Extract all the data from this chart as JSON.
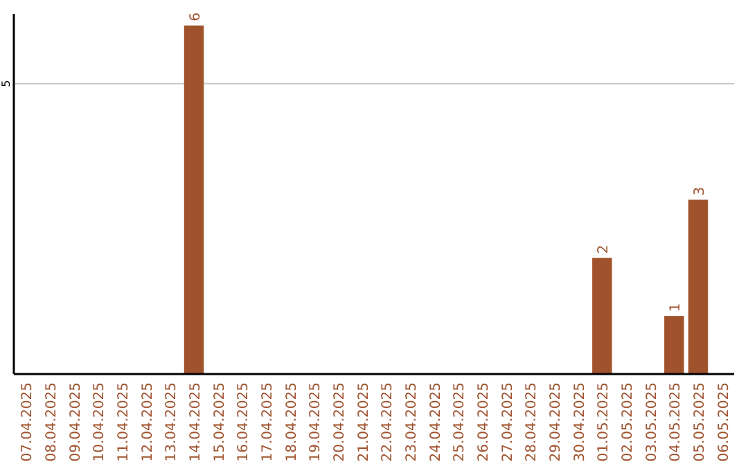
{
  "chart_data": {
    "type": "bar",
    "categories": [
      "07.04.2025",
      "08.04.2025",
      "09.04.2025",
      "10.04.2025",
      "11.04.2025",
      "12.04.2025",
      "13.04.2025",
      "14.04.2025",
      "15.04.2025",
      "16.04.2025",
      "17.04.2025",
      "18.04.2025",
      "19.04.2025",
      "20.04.2025",
      "21.04.2025",
      "22.04.2025",
      "23.04.2025",
      "24.04.2025",
      "25.04.2025",
      "26.04.2025",
      "27.04.2025",
      "28.04.2025",
      "29.04.2025",
      "30.04.2025",
      "01.05.2025",
      "02.05.2025",
      "03.05.2025",
      "04.05.2025",
      "05.05.2025",
      "06.05.2025"
    ],
    "values": [
      null,
      null,
      null,
      null,
      null,
      null,
      null,
      6,
      null,
      null,
      null,
      null,
      null,
      null,
      null,
      null,
      null,
      null,
      null,
      null,
      null,
      null,
      null,
      null,
      2,
      null,
      null,
      1,
      3,
      null
    ],
    "color": "#a0522d",
    "ylim": [
      0,
      6.2
    ],
    "yticks": [
      5
    ],
    "grid": "y",
    "data_labels": true
  }
}
